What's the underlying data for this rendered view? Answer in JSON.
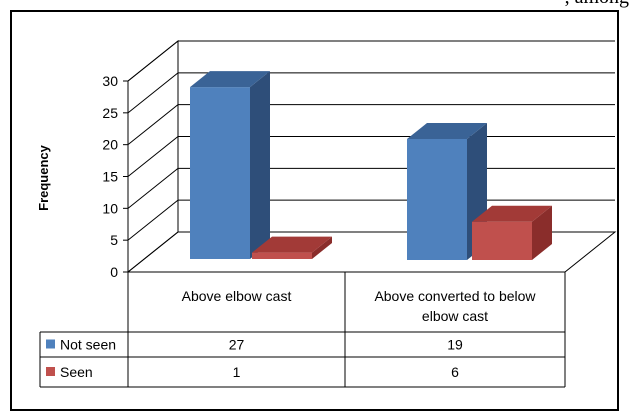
{
  "page": {
    "top_text": ", among "
  },
  "chart_data": {
    "type": "bar",
    "style": "3d-column",
    "categories": [
      "Above elbow cast",
      "Above converted to below elbow cast"
    ],
    "category_lines": [
      [
        "Above elbow cast"
      ],
      [
        "Above converted to below",
        "elbow cast"
      ]
    ],
    "series": [
      {
        "name": "Not seen",
        "values": [
          27,
          19
        ],
        "color": "#4f81bd",
        "side_color": "#2e4e79",
        "top_color": "#3a6396"
      },
      {
        "name": "Seen",
        "values": [
          1,
          6
        ],
        "color": "#c0504d",
        "side_color": "#8a2d2b",
        "top_color": "#a23a37"
      }
    ],
    "ylabel": "Frequency",
    "xlabel": "",
    "ylim": [
      0,
      30
    ],
    "yticks": [
      0,
      5,
      10,
      15,
      20,
      25,
      30
    ],
    "grid": true,
    "legend": "data-table"
  }
}
